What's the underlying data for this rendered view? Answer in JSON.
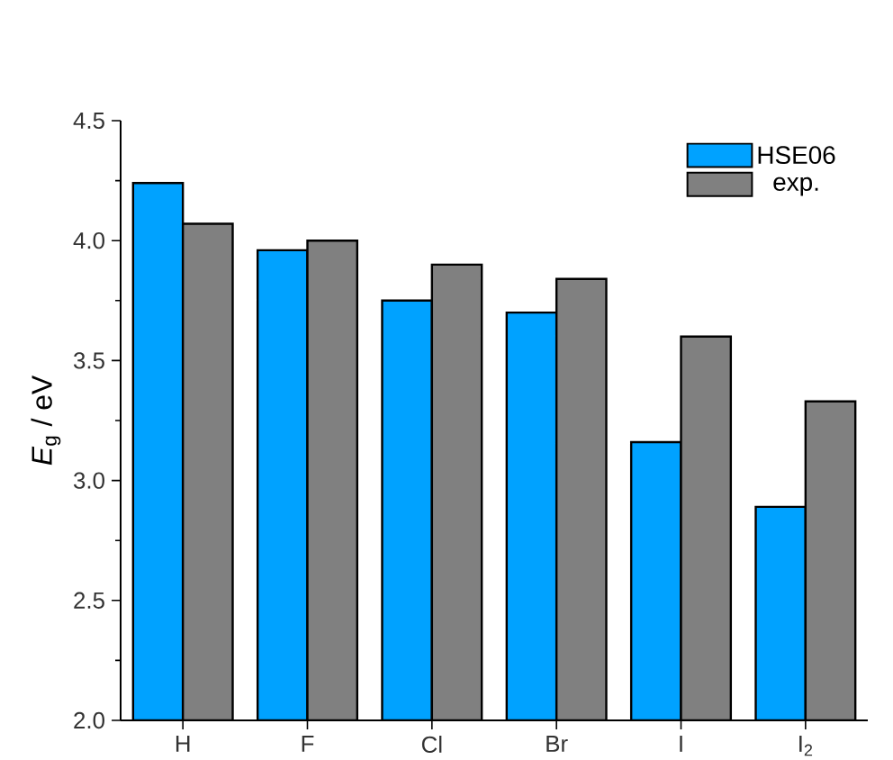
{
  "chart_data": {
    "type": "bar",
    "ylabel": "*E*$_{g}$ / eV",
    "categories": [
      "H",
      "F",
      "Cl",
      "Br",
      "I",
      "I$_{2}$"
    ],
    "series": [
      {
        "name": "HSE06",
        "color": "#00a2ff",
        "values": [
          4.24,
          3.96,
          3.75,
          3.7,
          3.16,
          2.89
        ]
      },
      {
        "name": "exp.",
        "color": "#808080",
        "values": [
          4.07,
          4.0,
          3.9,
          3.84,
          3.6,
          3.33
        ]
      }
    ],
    "ylim": [
      2.0,
      4.5
    ],
    "yticks": [
      {
        "value": 2.0,
        "label": "2.0"
      },
      {
        "value": 2.5,
        "label": "2.5"
      },
      {
        "value": 3.0,
        "label": "3.0"
      },
      {
        "value": 3.5,
        "label": "3.5"
      },
      {
        "value": 4.0,
        "label": "4.0"
      },
      {
        "value": 4.5,
        "label": "4.5"
      }
    ],
    "legend": "top right",
    "grid": false
  }
}
